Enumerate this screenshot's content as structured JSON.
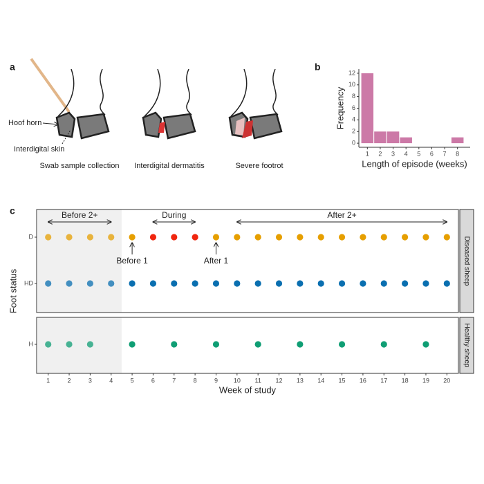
{
  "illustration": {
    "panel": "a",
    "parts": [
      "Hoof horn",
      "Interdigital skin"
    ],
    "captions": [
      "Swab sample collection",
      "Interdigital dermatitis",
      "Severe footrot"
    ]
  },
  "chart_data": [
    {
      "type": "bar",
      "panel": "b",
      "xlabel": "Length of episode (weeks)",
      "ylabel": "Frequency",
      "categories": [
        "1",
        "2",
        "3",
        "4",
        "5",
        "6",
        "7",
        "8"
      ],
      "values": [
        12,
        2,
        2,
        1,
        0,
        0,
        0,
        1
      ],
      "color": "#cc79a7",
      "ylim": [
        -0.7,
        12.7
      ],
      "yticks": [
        0,
        2,
        4,
        6,
        8,
        10,
        12
      ]
    },
    {
      "type": "dot",
      "panel": "c",
      "xlabel": "Week of study",
      "ylabel": "Foot status",
      "xlim": [
        0.45,
        20.55
      ],
      "xticks": [
        1,
        2,
        3,
        4,
        5,
        6,
        7,
        8,
        9,
        10,
        11,
        12,
        13,
        14,
        15,
        16,
        17,
        18,
        19,
        20
      ],
      "facets": [
        {
          "label": "Diseased sheep",
          "categories": [
            "D",
            "HD"
          ]
        },
        {
          "label": "Healthy sheep",
          "categories": [
            "H"
          ]
        }
      ],
      "shade": [
        0.5,
        4.5
      ],
      "series": [
        {
          "y": "D",
          "color": "#e69f00",
          "x": [
            1,
            2,
            3,
            4,
            5,
            9,
            10,
            11,
            12,
            13,
            14,
            15,
            16,
            17,
            18,
            19,
            20
          ]
        },
        {
          "y": "D",
          "color": "#f0260f",
          "x": [
            6,
            7,
            8
          ]
        },
        {
          "y": "HD",
          "color": "#0a6fb0",
          "x": [
            1,
            2,
            3,
            4,
            5,
            6,
            7,
            8,
            9,
            10,
            11,
            12,
            13,
            14,
            15,
            16,
            17,
            18,
            19,
            20
          ]
        },
        {
          "y": "H",
          "color": "#0f9e74",
          "x": [
            1,
            2,
            3,
            5,
            7,
            9,
            11,
            13,
            15,
            17,
            19
          ]
        }
      ],
      "spans": [
        {
          "text": "Before 2+",
          "from": 1,
          "to": 4
        },
        {
          "text": "During",
          "from": 6,
          "to": 8
        },
        {
          "text": "After 2+",
          "from": 10,
          "to": 20
        }
      ],
      "points": [
        {
          "text": "Before 1",
          "x": 5
        },
        {
          "text": "After 1",
          "x": 9
        }
      ]
    }
  ]
}
